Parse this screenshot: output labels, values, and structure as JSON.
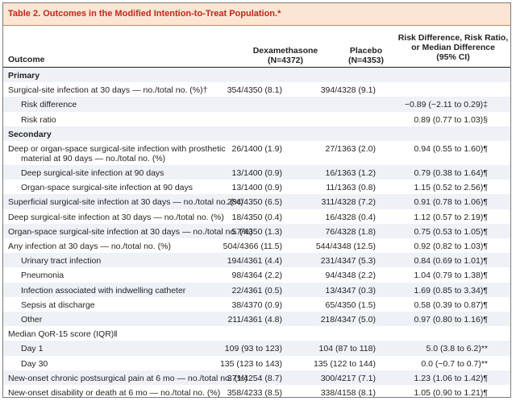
{
  "table": {
    "title": "Table 2. Outcomes in the Modified Intention-to-Treat Population.*",
    "headers": {
      "outcome": "Outcome",
      "dexamethasone": [
        "Dexamethasone",
        "(N=4372)"
      ],
      "placebo": [
        "Placebo",
        "(N=4353)"
      ],
      "risk": [
        "Risk Difference, Risk Ratio,",
        "or Median Difference",
        "(95% CI)"
      ]
    },
    "rows": [
      {
        "label": "Primary",
        "type": "section",
        "dex": "",
        "pla": "",
        "risk": ""
      },
      {
        "label": "Surgical-site infection at 30 days — no./total no. (%)†",
        "type": "main",
        "dex": "354/4350 (8.1)",
        "pla": "394/4328 (9.1)",
        "risk": ""
      },
      {
        "label": "Risk difference",
        "type": "indent",
        "dex": "",
        "pla": "",
        "risk": "−0.89 (−2.11 to 0.29)‡"
      },
      {
        "label": "Risk ratio",
        "type": "indent",
        "dex": "",
        "pla": "",
        "risk": "0.89 (0.77 to 1.03)§"
      },
      {
        "label": "Secondary",
        "type": "section",
        "dex": "",
        "pla": "",
        "risk": ""
      },
      {
        "label": "Deep or organ-space surgical-site infection with prosthetic",
        "label2": "material at 90 days — no./total no. (%)",
        "type": "main2",
        "dex": "26/1400 (1.9)",
        "pla": "27/1363 (2.0)",
        "risk": "0.94 (0.55 to 1.60)¶"
      },
      {
        "label": "Deep surgical-site infection at 90 days",
        "type": "indent",
        "dex": "13/1400 (0.9)",
        "pla": "16/1363 (1.2)",
        "risk": "0.79 (0.38 to 1.64)¶"
      },
      {
        "label": "Organ-space surgical-site infection at 90 days",
        "type": "indent",
        "dex": "13/1400 (0.9)",
        "pla": "11/1363 (0.8)",
        "risk": "1.15 (0.52 to 2.56)¶"
      },
      {
        "label": "Superficial surgical-site infection at 30 days — no./total no. (%)",
        "type": "main",
        "dex": "284/4350 (6.5)",
        "pla": "311/4328 (7.2)",
        "risk": "0.91 (0.78 to 1.06)¶"
      },
      {
        "label": "Deep surgical-site infection at 30 days — no./total no. (%)",
        "type": "main",
        "dex": "18/4350 (0.4)",
        "pla": "16/4328 (0.4)",
        "risk": "1.12 (0.57 to 2.19)¶"
      },
      {
        "label": "Organ-space surgical-site infection at 30 days — no./total no. (%)",
        "type": "main",
        "dex": "57/4350 (1.3)",
        "pla": "76/4328 (1.8)",
        "risk": "0.75 (0.53 to 1.05)¶"
      },
      {
        "label": "Any infection at 30 days — no./total no. (%)",
        "type": "main",
        "dex": "504/4366 (11.5)",
        "pla": "544/4348 (12.5)",
        "risk": "0.92 (0.82 to 1.03)¶"
      },
      {
        "label": "Urinary tract infection",
        "type": "indent",
        "dex": "194/4361 (4.4)",
        "pla": "231/4347 (5.3)",
        "risk": "0.84 (0.69 to 1.01)¶"
      },
      {
        "label": "Pneumonia",
        "type": "indent",
        "dex": "98/4364 (2.2)",
        "pla": "94/4348 (2.2)",
        "risk": "1.04 (0.79 to 1.38)¶"
      },
      {
        "label": "Infection associated with indwelling catheter",
        "type": "indent",
        "dex": "22/4361 (0.5)",
        "pla": "13/4347 (0.3)",
        "risk": "1.69 (0.85 to 3.34)¶"
      },
      {
        "label": "Sepsis at discharge",
        "type": "indent",
        "dex": "38/4370 (0.9)",
        "pla": "65/4350 (1.5)",
        "risk": "0.58 (0.39 to 0.87)¶"
      },
      {
        "label": "Other",
        "type": "indent",
        "dex": "211/4361 (4.8)",
        "pla": "218/4347 (5.0)",
        "risk": "0.97 (0.80 to 1.16)¶"
      },
      {
        "label": "Median QoR-15 score (IQR)‖",
        "type": "main",
        "dex": "",
        "pla": "",
        "risk": ""
      },
      {
        "label": "Day 1",
        "type": "indent",
        "dex": "109 (93 to 123)",
        "pla": "104 (87 to 118)",
        "risk": "5.0 (3.8 to 6.2)**"
      },
      {
        "label": "Day 30",
        "type": "indent",
        "dex": "135 (123 to 143)",
        "pla": "135 (122 to 144)",
        "risk": "0.0 (−0.7 to 0.7)**"
      },
      {
        "label": "New-onset chronic postsurgical pain at 6 mo — no./total no. (%)",
        "type": "main",
        "dex": "371/4254 (8.7)",
        "pla": "300/4217 (7.1)",
        "risk": "1.23 (1.06 to 1.42)¶"
      },
      {
        "label": "New-onset disability or death at 6 mo — no./total no. (%)",
        "type": "main",
        "dex": "358/4233 (8.5)",
        "pla": "338/4158 (8.1)",
        "risk": "1.05 (0.90 to 1.21)¶"
      }
    ]
  }
}
